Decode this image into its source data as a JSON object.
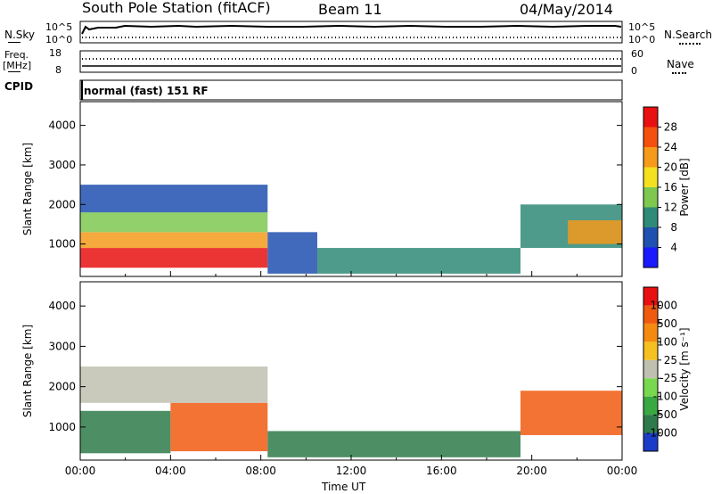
{
  "header": {
    "station": "South Pole Station (fitACF)",
    "beam": "Beam 11",
    "date": "04/May/2014"
  },
  "top_panels": {
    "nsky_label": "N.Sky",
    "nsearch_label": "N.Search",
    "noise_ticks": [
      "10^5",
      "10^0"
    ],
    "freq_label": "Freq.",
    "freq_unit": "[MHz]",
    "freq_ticks": [
      "18",
      "8"
    ],
    "nave_label": "Nave",
    "nave_ticks": [
      "60",
      "0"
    ],
    "cpid_label": "CPID",
    "cpid_text": "normal (fast) 151 RF"
  },
  "chart_data": [
    {
      "type": "heatmap",
      "name": "power",
      "ylabel": "Slant Range [km]",
      "yticks": [
        1000,
        2000,
        3000,
        4000
      ],
      "ylim": [
        180,
        4600
      ],
      "xlim": [
        0,
        24
      ],
      "colorbar": {
        "label": "Power [dB]",
        "ticks": [
          "4",
          "8",
          "12",
          "16",
          "20",
          "24",
          "28"
        ],
        "colors": [
          "#1a1aff",
          "#2050b0",
          "#2f8a78",
          "#7ec850",
          "#f5e020",
          "#f59a1a",
          "#f55010",
          "#e81010"
        ]
      },
      "regions": [
        {
          "x0": 0.0,
          "x1": 8.3,
          "y0": 400,
          "y1": 900,
          "level": 7
        },
        {
          "x0": 0.0,
          "x1": 8.3,
          "y0": 900,
          "y1": 1300,
          "level": 5
        },
        {
          "x0": 0.0,
          "x1": 8.3,
          "y0": 1300,
          "y1": 1800,
          "level": 3
        },
        {
          "x0": 0.0,
          "x1": 8.3,
          "y0": 1800,
          "y1": 2500,
          "level": 1
        },
        {
          "x0": 8.3,
          "x1": 10.5,
          "y0": 250,
          "y1": 1300,
          "level": 1
        },
        {
          "x0": 10.5,
          "x1": 19.5,
          "y0": 250,
          "y1": 900,
          "level": 2
        },
        {
          "x0": 19.5,
          "x1": 24.0,
          "y0": 900,
          "y1": 2000,
          "level": 2
        },
        {
          "x0": 21.6,
          "x1": 24.0,
          "y0": 1000,
          "y1": 1600,
          "level": 5
        }
      ]
    },
    {
      "type": "heatmap",
      "name": "velocity",
      "ylabel": "Slant Range [km]",
      "yticks": [
        1000,
        2000,
        3000,
        4000
      ],
      "ylim": [
        180,
        4600
      ],
      "xlim": [
        0,
        24
      ],
      "xticks": [
        "00:00",
        "04:00",
        "08:00",
        "12:00",
        "16:00",
        "20:00",
        "00:00"
      ],
      "xlabel": "Time UT",
      "colorbar": {
        "label": "Velocity [m s⁻¹]",
        "ticks": [
          "1000",
          "500",
          "100",
          "25",
          "-25",
          "-100",
          "-500",
          "-1000"
        ],
        "colors": [
          "#1a3cc8",
          "#2f7a4a",
          "#3aa840",
          "#78d850",
          "#c0c0b0",
          "#f5c020",
          "#f58a10",
          "#f05a10",
          "#e81010"
        ]
      },
      "regions": [
        {
          "x0": 0.0,
          "x1": 4.0,
          "y0": 350,
          "y1": 1400,
          "level": 1
        },
        {
          "x0": 4.0,
          "x1": 8.3,
          "y0": 400,
          "y1": 1600,
          "level": 7
        },
        {
          "x0": 0.0,
          "x1": 8.3,
          "y0": 1600,
          "y1": 2500,
          "level": 4
        },
        {
          "x0": 8.3,
          "x1": 19.5,
          "y0": 250,
          "y1": 900,
          "level": 1
        },
        {
          "x0": 19.5,
          "x1": 24.0,
          "y0": 800,
          "y1": 1900,
          "level": 7
        }
      ]
    }
  ]
}
